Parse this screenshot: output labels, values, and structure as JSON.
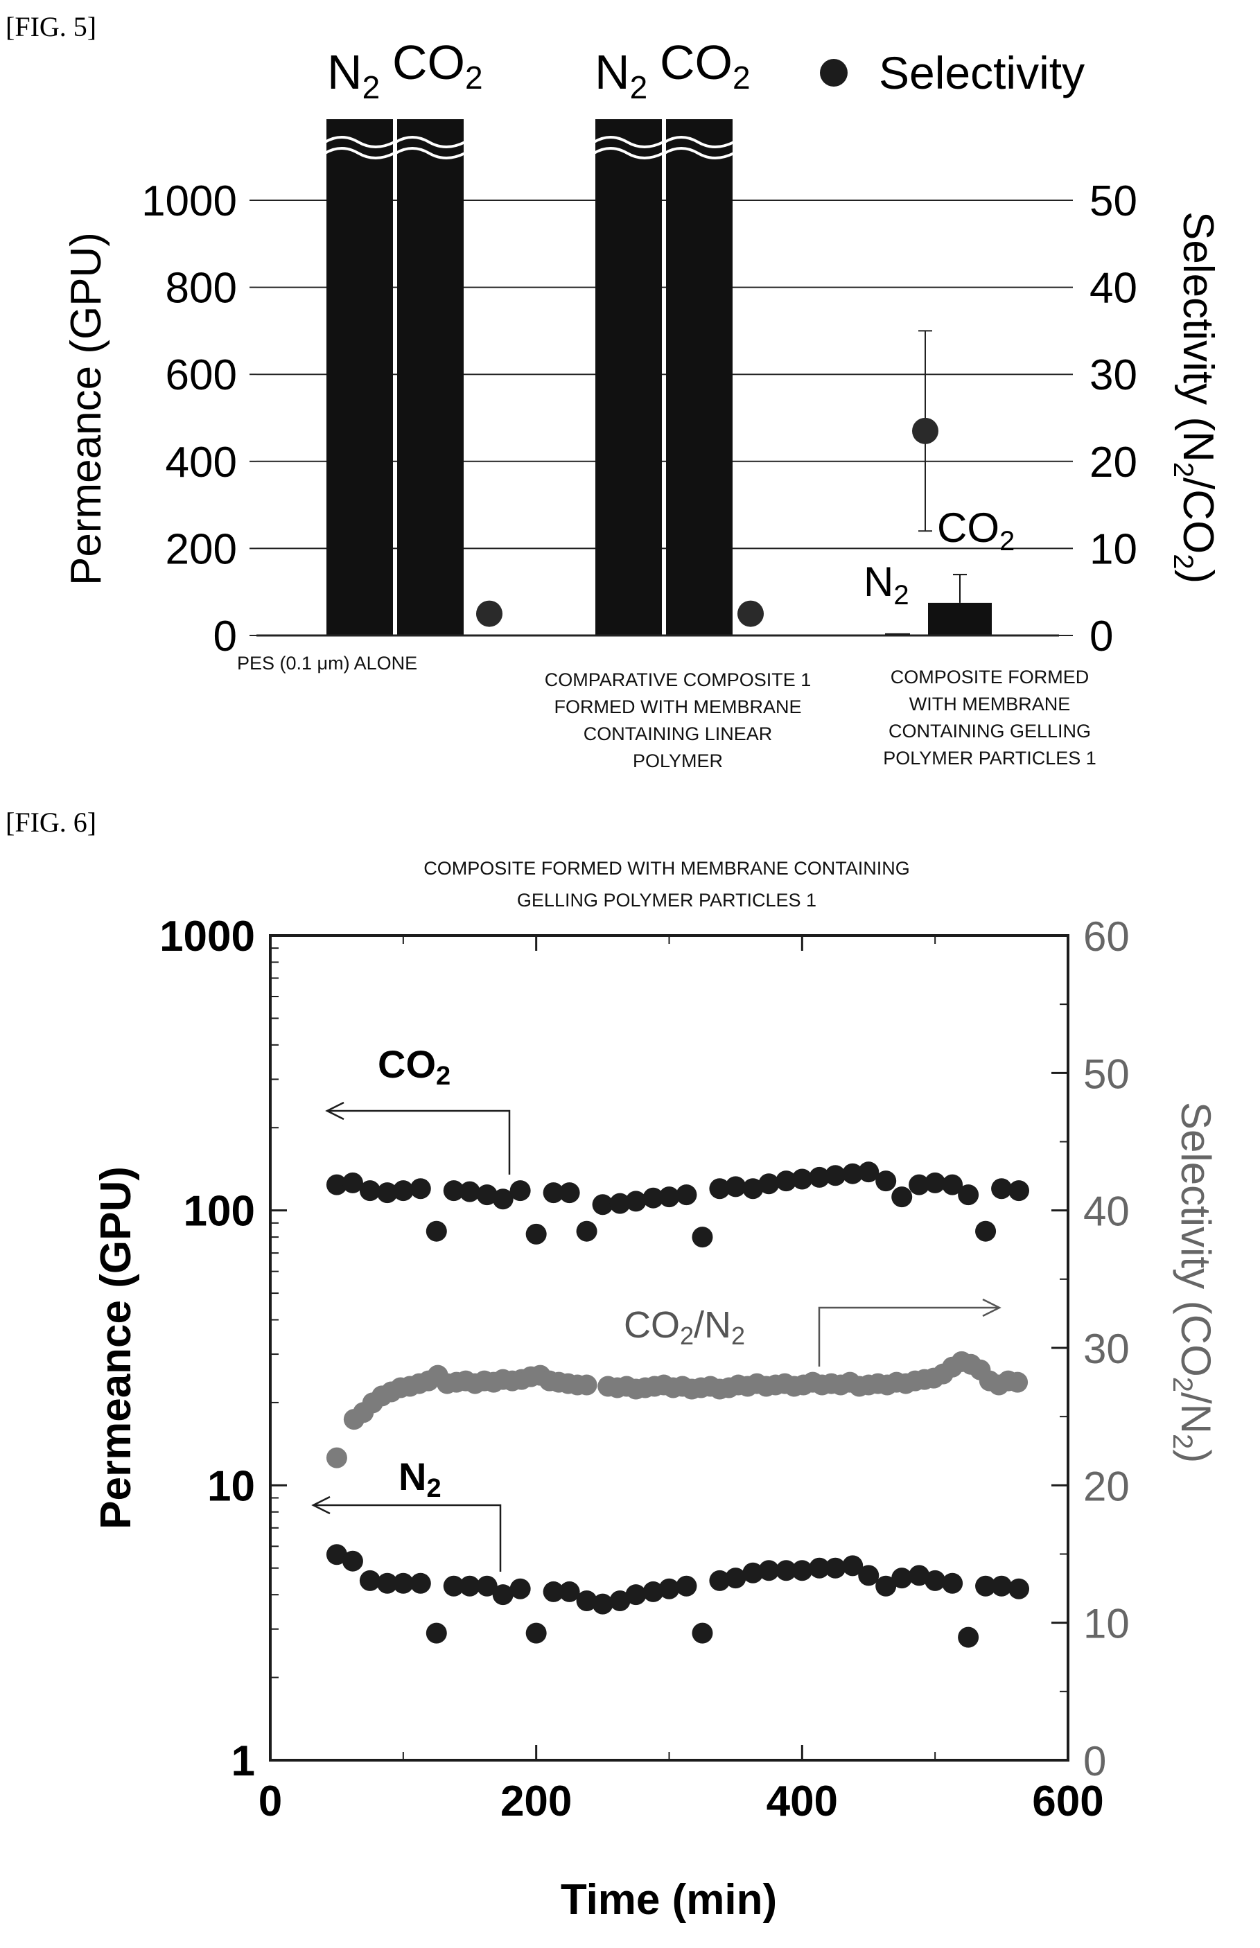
{
  "fig5": {
    "label": "[FIG. 5]",
    "left_axis_title": "Permeance (GPU)",
    "right_axis_title": "Selectivity (N2/CO2)",
    "right_axis_title_parts": [
      "Selectivity (N",
      "2",
      "/CO",
      "2",
      ")"
    ],
    "legend": "Selectivity",
    "bar_pair_labels": [
      [
        "N",
        "2",
        "CO",
        "2"
      ],
      [
        "N",
        "2",
        "CO",
        "2"
      ]
    ],
    "n2_label": [
      "N",
      "2"
    ],
    "co2_label": [
      "CO",
      "2"
    ],
    "group_captions": [
      [
        "PES (0.1 μm) ALONE"
      ],
      [
        "COMPARATIVE COMPOSITE 1",
        "FORMED WITH MEMBRANE",
        "CONTAINING LINEAR",
        "POLYMER"
      ],
      [
        "COMPOSITE FORMED",
        "WITH MEMBRANE",
        "CONTAINING GELLING",
        "POLYMER PARTICLES 1"
      ]
    ]
  },
  "fig6": {
    "label": "[FIG. 6]",
    "title_lines": [
      "COMPOSITE FORMED WITH MEMBRANE CONTAINING",
      "GELLING POLYMER PARTICLES 1"
    ],
    "x_axis_title": "Time (min)",
    "left_axis_title": "Permeance (GPU)",
    "right_axis_title": "Selectivity (CO2/N2)",
    "right_axis_title_parts": [
      "Selectivity (CO",
      "2",
      "/N",
      "2",
      ")"
    ],
    "annot_co2": [
      "CO",
      "2"
    ],
    "annot_n2": [
      "N",
      "2"
    ],
    "annot_ratio": [
      "CO",
      "2",
      "/N",
      "2"
    ]
  },
  "chart_data": [
    {
      "type": "bar",
      "categories": [
        "PES (0.1 μm) ALONE",
        "COMPARATIVE COMPOSITE 1 FORMED WITH MEMBRANE CONTAINING LINEAR POLYMER",
        "COMPOSITE FORMED WITH MEMBRANE CONTAINING GELLING POLYMER PARTICLES 1"
      ],
      "series": [
        {
          "name": "N2",
          "values": [
            1100,
            1100,
            5
          ],
          "broken": [
            true,
            true,
            false
          ],
          "error": [
            null,
            null,
            null
          ]
        },
        {
          "name": "CO2",
          "values": [
            1100,
            1100,
            75
          ],
          "broken": [
            true,
            true,
            false
          ],
          "error": [
            null,
            null,
            65
          ]
        },
        {
          "name": "Selectivity",
          "axis": "right",
          "marker": "circle",
          "values": [
            2.5,
            2.5,
            23.5
          ],
          "error": [
            null,
            null,
            11.5
          ]
        }
      ],
      "ylabel": "Permeance (GPU)",
      "y2label": "Selectivity (N2/CO2)",
      "ylim": [
        0,
        1100
      ],
      "y2lim": [
        0,
        55
      ],
      "yticks": [
        0,
        200,
        400,
        600,
        800,
        1000
      ],
      "y2ticks": [
        0,
        10,
        20,
        30,
        40,
        50
      ],
      "grid": true,
      "legend_position": "top-right"
    },
    {
      "type": "scatter",
      "title": "COMPOSITE FORMED WITH MEMBRANE CONTAINING GELLING POLYMER PARTICLES 1",
      "xlabel": "Time (min)",
      "ylabel": "Permeance (GPU)",
      "y2label": "Selectivity (CO2/N2)",
      "xlim": [
        0,
        600
      ],
      "ylim": [
        1,
        1000
      ],
      "yscale": "log",
      "y2lim": [
        0,
        60
      ],
      "xticks": [
        0,
        200,
        400,
        600
      ],
      "yticks": [
        1,
        10,
        100,
        1000
      ],
      "y2ticks": [
        0,
        10,
        20,
        30,
        40,
        50,
        60
      ],
      "grid": false,
      "series": [
        {
          "name": "CO2",
          "axis": "left",
          "color": "#1c1c1c",
          "x": [
            50,
            62,
            75,
            88,
            100,
            113,
            125,
            138,
            150,
            163,
            175,
            188,
            200,
            213,
            225,
            238,
            250,
            263,
            275,
            288,
            300,
            313,
            325,
            338,
            350,
            363,
            375,
            388,
            400,
            413,
            425,
            438,
            450,
            463,
            475,
            488,
            500,
            513,
            525,
            538,
            550,
            563
          ],
          "y": [
            124,
            126,
            118,
            116,
            118,
            120,
            84,
            118,
            117,
            114,
            110,
            118,
            82,
            116,
            116,
            84,
            105,
            106,
            108,
            111,
            112,
            114,
            80,
            120,
            122,
            120,
            125,
            128,
            130,
            132,
            134,
            136,
            138,
            128,
            112,
            124,
            126,
            124,
            114,
            84,
            120,
            118
          ]
        },
        {
          "name": "N2",
          "axis": "left",
          "color": "#1c1c1c",
          "x": [
            50,
            62,
            75,
            88,
            100,
            113,
            125,
            138,
            150,
            163,
            175,
            188,
            200,
            213,
            225,
            238,
            250,
            263,
            275,
            288,
            300,
            313,
            325,
            338,
            350,
            363,
            375,
            388,
            400,
            413,
            425,
            438,
            450,
            463,
            475,
            488,
            500,
            513,
            525,
            538,
            550,
            563
          ],
          "y": [
            5.6,
            5.3,
            4.5,
            4.4,
            4.4,
            4.4,
            2.9,
            4.3,
            4.3,
            4.3,
            4.0,
            4.2,
            2.9,
            4.1,
            4.1,
            3.8,
            3.7,
            3.8,
            4.0,
            4.1,
            4.2,
            4.3,
            2.9,
            4.5,
            4.6,
            4.8,
            4.9,
            4.9,
            4.9,
            5.0,
            5.0,
            5.1,
            4.7,
            4.3,
            4.6,
            4.7,
            4.5,
            4.4,
            2.8,
            4.3,
            4.3,
            4.2
          ]
        },
        {
          "name": "CO2/N2",
          "axis": "right",
          "color": "#7c7c7c",
          "x": [
            50,
            63,
            70,
            77,
            84,
            91,
            98,
            105,
            112,
            119,
            126,
            133,
            140,
            147,
            154,
            161,
            168,
            175,
            182,
            189,
            196,
            203,
            210,
            217,
            224,
            231,
            238,
            254,
            261,
            268,
            275,
            282,
            289,
            296,
            303,
            310,
            317,
            324,
            331,
            338,
            345,
            352,
            359,
            366,
            373,
            380,
            387,
            394,
            401,
            408,
            415,
            422,
            429,
            436,
            443,
            450,
            457,
            464,
            471,
            478,
            485,
            492,
            499,
            506,
            513,
            520,
            527,
            534,
            541,
            548,
            555,
            562
          ],
          "y": [
            22.0,
            24.8,
            25.3,
            26.0,
            26.5,
            26.8,
            27.1,
            27.2,
            27.4,
            27.6,
            28.0,
            27.4,
            27.5,
            27.6,
            27.4,
            27.6,
            27.5,
            27.7,
            27.6,
            27.7,
            27.9,
            28.0,
            27.6,
            27.5,
            27.4,
            27.3,
            27.3,
            27.2,
            27.1,
            27.2,
            27.0,
            27.1,
            27.2,
            27.3,
            27.1,
            27.2,
            27.0,
            27.1,
            27.2,
            27.0,
            27.1,
            27.3,
            27.2,
            27.4,
            27.2,
            27.3,
            27.4,
            27.2,
            27.3,
            27.5,
            27.3,
            27.4,
            27.3,
            27.5,
            27.2,
            27.3,
            27.4,
            27.3,
            27.5,
            27.4,
            27.6,
            27.7,
            27.8,
            28.1,
            28.6,
            29.0,
            28.8,
            28.4,
            27.6,
            27.3,
            27.6,
            27.5
          ]
        }
      ]
    }
  ]
}
